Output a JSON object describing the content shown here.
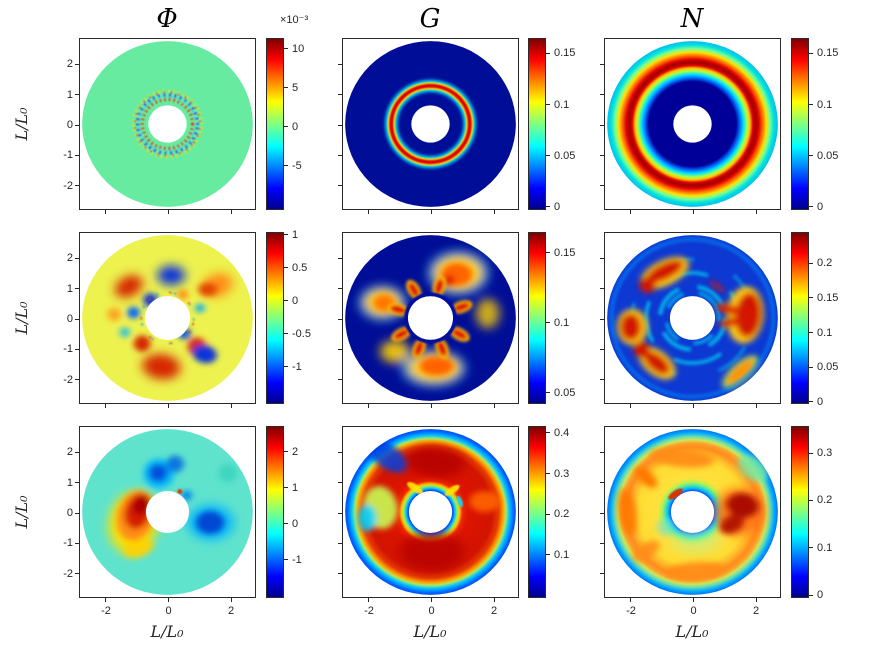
{
  "figure": {
    "background": "#ffffff",
    "frame_color": "#2b2b2b",
    "tick_text_color": "#262626"
  },
  "axes": {
    "xlabel": "L/L₀",
    "ylabel": "L/L₀",
    "range": [
      -2.83,
      2.83
    ],
    "x_ticks": [
      {
        "value": -2,
        "label": "-2"
      },
      {
        "value": 0,
        "label": "0"
      },
      {
        "value": 2,
        "label": "2"
      }
    ],
    "y_ticks": [
      {
        "value": 2,
        "label": "2"
      },
      {
        "value": 1,
        "label": "1"
      },
      {
        "value": 0,
        "label": "0"
      },
      {
        "value": -1,
        "label": "-1"
      },
      {
        "value": -2,
        "label": "-2"
      }
    ]
  },
  "colormap": {
    "name": "jet",
    "stops": [
      "#00008f",
      "#0000ff",
      "#00ffff",
      "#80ff80",
      "#ffff00",
      "#ff0000",
      "#800000"
    ]
  },
  "chart_data": {
    "type": "heatmap",
    "layout": "3x3 grid of annular pseudocolor maps (jet colormap), each with its own vertical colorbar; rows are three snapshots, columns are fields Φ, G, N",
    "columns": [
      "Φ",
      "G",
      "N"
    ],
    "annulus": {
      "outer_radius": 2.76,
      "inner_radius_rows": [
        0.62,
        0.73,
        0.7
      ]
    },
    "panels": [
      {
        "row": 0,
        "col": 0,
        "field": "Φ",
        "pattern": "uniform green annulus (value ≈ 0) with a thin ring of fine alternating red/blue/yellow speckles near r ≈ 1",
        "colorbar": {
          "scale_label": "×10⁻³",
          "vmin": -0.0107,
          "vmax": 0.0114,
          "ticks": [
            {
              "value": 0.01,
              "label": "10"
            },
            {
              "value": 0.005,
              "label": "5"
            },
            {
              "value": 0.0,
              "label": "0"
            },
            {
              "value": -0.005,
              "label": "-5"
            }
          ]
        }
      },
      {
        "row": 0,
        "col": 1,
        "field": "G",
        "pattern": "dark blue annulus with a single sharp red ring (yellow/cyan fringed) at r ≈ 1.3",
        "colorbar": {
          "vmin": -0.003,
          "vmax": 0.165,
          "ticks": [
            {
              "value": 0.15,
              "label": "0.15"
            },
            {
              "value": 0.1,
              "label": "0.1"
            },
            {
              "value": 0.05,
              "label": "0.05"
            },
            {
              "value": 0.0,
              "label": "0"
            }
          ]
        }
      },
      {
        "row": 0,
        "col": 2,
        "field": "N",
        "pattern": "dark blue inner region, broad red ring centered at r ≈ 2, cyan outer rim",
        "colorbar": {
          "vmin": -0.003,
          "vmax": 0.165,
          "ticks": [
            {
              "value": 0.15,
              "label": "0.15"
            },
            {
              "value": 0.1,
              "label": "0.1"
            },
            {
              "value": 0.05,
              "label": "0.05"
            },
            {
              "value": 0.0,
              "label": "0"
            }
          ]
        }
      },
      {
        "row": 1,
        "col": 0,
        "field": "Φ",
        "pattern": "yellow background with interleaved red and blue lobes radiating from the inner boundary",
        "colorbar": {
          "vmin": -1.56,
          "vmax": 1.04,
          "ticks": [
            {
              "value": 1,
              "label": "1"
            },
            {
              "value": 0.5,
              "label": "0.5"
            },
            {
              "value": 0,
              "label": "0"
            },
            {
              "value": -0.5,
              "label": "-0.5"
            },
            {
              "value": -1,
              "label": "-1"
            }
          ]
        }
      },
      {
        "row": 1,
        "col": 1,
        "field": "G",
        "pattern": "dark blue background with orange/yellow lobes and small red petals hugging the inner boundary",
        "colorbar": {
          "vmin": 0.042,
          "vmax": 0.165,
          "ticks": [
            {
              "value": 0.15,
              "label": "0.15"
            },
            {
              "value": 0.1,
              "label": "0.1"
            },
            {
              "value": 0.05,
              "label": "0.05"
            }
          ]
        }
      },
      {
        "row": 1,
        "col": 2,
        "field": "N",
        "pattern": "blue background with cyan turbulent filaments and red patches (upper-left curl, right wedge, lower-left) with yellow fringes",
        "colorbar": {
          "vmin": -0.003,
          "vmax": 0.245,
          "ticks": [
            {
              "value": 0.2,
              "label": "0.2"
            },
            {
              "value": 0.15,
              "label": "0.15"
            },
            {
              "value": 0.1,
              "label": "0.1"
            },
            {
              "value": 0.05,
              "label": "0.05"
            },
            {
              "value": 0.0,
              "label": "0"
            }
          ]
        }
      },
      {
        "row": 2,
        "col": 0,
        "field": "Φ",
        "pattern": "pale teal background with a strong red crescent left of the hole (yellow halo) and deep blue blobs above and to the right",
        "colorbar": {
          "vmin": -2.06,
          "vmax": 2.72,
          "ticks": [
            {
              "value": 2,
              "label": "2"
            },
            {
              "value": 1,
              "label": "1"
            },
            {
              "value": 0,
              "label": "0"
            },
            {
              "value": -1,
              "label": "-1"
            }
          ]
        }
      },
      {
        "row": 2,
        "col": 1,
        "field": "G",
        "pattern": "mostly saturated red/orange annulus, thin blue ring at the inner boundary, blue outer rim, yellow-green wedge on the left",
        "colorbar": {
          "vmin": -0.006,
          "vmax": 0.417,
          "ticks": [
            {
              "value": 0.4,
              "label": "0.4"
            },
            {
              "value": 0.3,
              "label": "0.3"
            },
            {
              "value": 0.2,
              "label": "0.2"
            },
            {
              "value": 0.1,
              "label": "0.1"
            }
          ]
        }
      },
      {
        "row": 2,
        "col": 2,
        "field": "N",
        "pattern": "yellow/orange annulus with orange arcs, a dark red S-shaped blob right of the hole, thin blue rings at inner and outer boundaries",
        "colorbar": {
          "vmin": -0.006,
          "vmax": 0.357,
          "ticks": [
            {
              "value": 0.3,
              "label": "0.3"
            },
            {
              "value": 0.2,
              "label": "0.2"
            },
            {
              "value": 0.1,
              "label": "0.1"
            },
            {
              "value": 0.0,
              "label": "0"
            }
          ]
        }
      }
    ]
  }
}
